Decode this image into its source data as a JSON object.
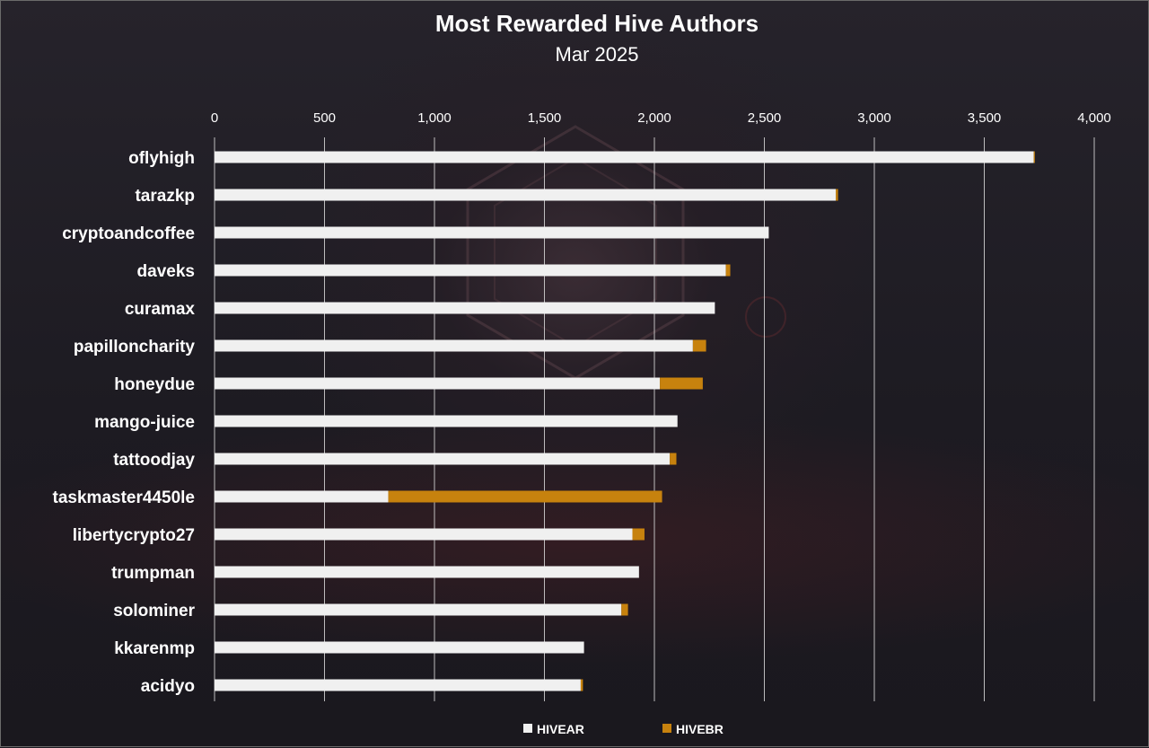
{
  "chart_data": {
    "type": "bar",
    "orientation": "horizontal",
    "stacked": true,
    "title": "Most Rewarded Hive Authors",
    "subtitle": "Mar 2025",
    "xlim": [
      0,
      4000
    ],
    "xticks": [
      "0",
      "500",
      "1,000",
      "1,500",
      "2,000",
      "2,500",
      "3,000",
      "3,500",
      "4,000"
    ],
    "xtick_values": [
      0,
      500,
      1000,
      1500,
      2000,
      2500,
      3000,
      3500,
      4000
    ],
    "grid": true,
    "legend_position": "bottom",
    "categories": [
      "oflyhigh",
      "tarazkp",
      "cryptoandcoffee",
      "daveks",
      "curamax",
      "papilloncharity",
      "honeydue",
      "mango-juice",
      "tattoodjay",
      "taskmaster4450le",
      "libertycrypto27",
      "trumpman",
      "solominer",
      "kkarenmp",
      "acidyo"
    ],
    "series": [
      {
        "name": "HIVEAR",
        "color": "#f0f0f0",
        "values": [
          3725,
          2825,
          2520,
          2325,
          2275,
          2175,
          2025,
          2105,
          2070,
          790,
          1900,
          1930,
          1850,
          1680,
          1665
        ]
      },
      {
        "name": "HIVEBR",
        "color": "#c7820e",
        "values": [
          5,
          10,
          0,
          20,
          0,
          60,
          195,
          0,
          30,
          1245,
          55,
          0,
          30,
          0,
          10
        ]
      }
    ]
  }
}
